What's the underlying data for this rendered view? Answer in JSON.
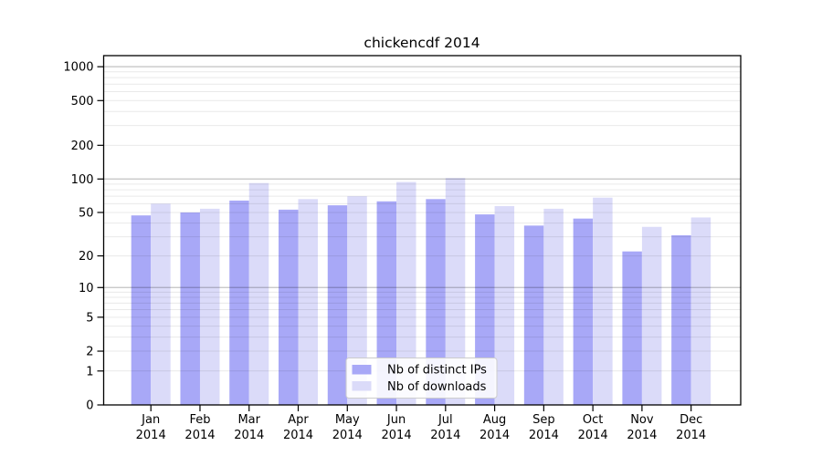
{
  "chart_data": {
    "type": "bar",
    "title": "chickencdf 2014",
    "months": [
      "Jan",
      "Feb",
      "Mar",
      "Apr",
      "May",
      "Jun",
      "Jul",
      "Aug",
      "Sep",
      "Oct",
      "Nov",
      "Dec"
    ],
    "year": "2014",
    "categories": [
      "Jan 2014",
      "Feb 2014",
      "Mar 2014",
      "Apr 2014",
      "May 2014",
      "Jun 2014",
      "Jul 2014",
      "Aug 2014",
      "Sep 2014",
      "Oct 2014",
      "Nov 2014",
      "Dec 2014"
    ],
    "series": [
      {
        "name": "Nb of distinct IPs",
        "color": "#a8a8f7",
        "values": [
          47,
          50,
          64,
          53,
          58,
          63,
          66,
          48,
          38,
          44,
          22,
          31
        ]
      },
      {
        "name": "Nb of downloads",
        "color": "#dbdbf9",
        "values": [
          60,
          54,
          92,
          66,
          70,
          94,
          102,
          57,
          54,
          68,
          37,
          45
        ]
      }
    ],
    "xlabel": "",
    "ylabel": "",
    "y_axis": {
      "scale": "log1p",
      "ticks": [
        0,
        1,
        2,
        5,
        10,
        20,
        50,
        100,
        200,
        500,
        1000
      ],
      "top_value": 1250
    },
    "grid": "on",
    "legend_position": "lower center",
    "colors": {
      "major_gridline": "#c3c3c3",
      "minor_gridline": "#e9e9e9",
      "axis": "#000000",
      "legend_border": "#cccccc"
    }
  }
}
